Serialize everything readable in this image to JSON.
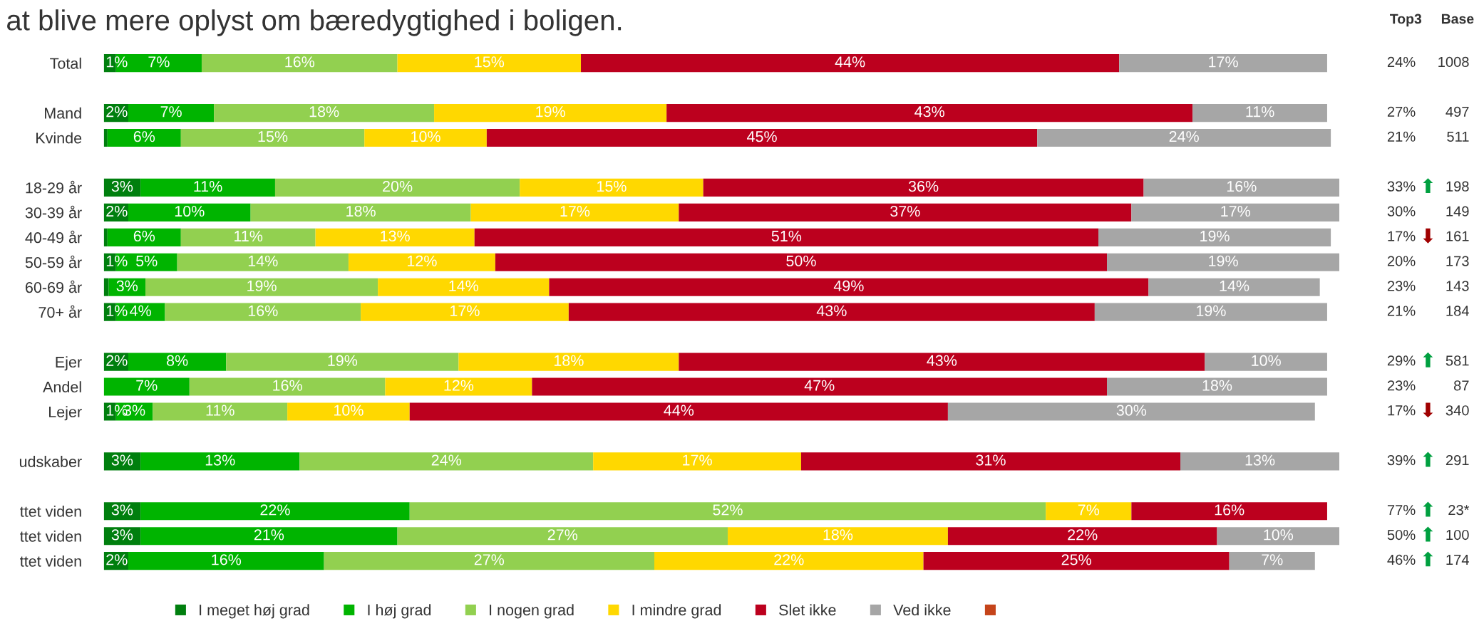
{
  "chart_data": {
    "type": "bar",
    "orientation": "horizontal",
    "stacked": true,
    "title": "at blive mere oplyst om bæredygtighed i boligen.",
    "categories": [
      "Total",
      null,
      "Mand",
      "Kvinde",
      null,
      "18-29 år",
      "30-39 år",
      "40-49 år",
      "50-59 år",
      "60-69 år",
      "70+ år",
      null,
      "Ejer",
      "Andel",
      "Lejer",
      null,
      "udskaber",
      null,
      "ttet viden",
      "ttet viden",
      "ttet viden"
    ],
    "xlim": [
      0,
      101
    ],
    "tick_labels": "y",
    "grid": false,
    "legend": "bottom",
    "series": [
      {
        "name": "I meget høj grad",
        "color": "#007f0e",
        "values": [
          1,
          null,
          2,
          0.3,
          null,
          3,
          2,
          0.3,
          1,
          0.4,
          1,
          null,
          2,
          null,
          1,
          null,
          3,
          null,
          3,
          3,
          2
        ],
        "value_labels": [
          "1%",
          null,
          "2%",
          null,
          null,
          "3%",
          "2%",
          null,
          "1%",
          null,
          "1%",
          null,
          "2%",
          null,
          "1%",
          null,
          "3%",
          null,
          "3%",
          "3%",
          "2%"
        ]
      },
      {
        "name": "I høj grad",
        "color": "#00b400",
        "values": [
          7,
          null,
          7,
          6,
          null,
          11,
          10,
          6,
          5,
          3,
          4,
          null,
          8,
          7,
          3,
          null,
          13,
          null,
          22,
          21,
          16
        ],
        "value_labels": [
          "7%",
          null,
          "7%",
          "6%",
          null,
          "11%",
          "10%",
          "6%",
          "5%",
          "3%",
          "4%",
          null,
          "8%",
          "7%",
          "3%",
          null,
          "13%",
          null,
          "22%",
          "21%",
          "16%"
        ]
      },
      {
        "name": "I nogen grad",
        "color": "#92d050",
        "values": [
          16,
          null,
          18,
          15,
          null,
          20,
          18,
          11,
          14,
          19,
          16,
          null,
          19,
          16,
          11,
          null,
          24,
          null,
          52,
          27,
          27
        ],
        "value_labels": [
          "16%",
          null,
          "18%",
          "15%",
          null,
          "20%",
          "18%",
          "11%",
          "14%",
          "19%",
          "16%",
          null,
          "19%",
          "16%",
          "11%",
          null,
          "24%",
          null,
          "52%",
          "27%",
          "27%"
        ]
      },
      {
        "name": "I mindre grad",
        "color": "#ffd800",
        "values": [
          15,
          null,
          19,
          10,
          null,
          15,
          17,
          13,
          12,
          14,
          17,
          null,
          18,
          12,
          10,
          null,
          17,
          null,
          7,
          18,
          22
        ],
        "value_labels": [
          "15%",
          null,
          "19%",
          "10%",
          null,
          "15%",
          "17%",
          "13%",
          "12%",
          "14%",
          "17%",
          null,
          "18%",
          "12%",
          "10%",
          null,
          "17%",
          null,
          "7%",
          "18%",
          "22%"
        ]
      },
      {
        "name": "Slet ikke",
        "color": "#bc001e",
        "values": [
          44,
          null,
          43,
          45,
          null,
          36,
          37,
          51,
          50,
          49,
          43,
          null,
          43,
          47,
          44,
          null,
          31,
          null,
          16,
          22,
          25
        ],
        "value_labels": [
          "44%",
          null,
          "43%",
          "45%",
          null,
          "36%",
          "37%",
          "51%",
          "50%",
          "49%",
          "43%",
          null,
          "43%",
          "47%",
          "44%",
          null,
          "31%",
          null,
          "16%",
          "22%",
          "25%"
        ]
      },
      {
        "name": "Ved ikke",
        "color": "#a6a6a6",
        "values": [
          17,
          null,
          11,
          24,
          null,
          16,
          17,
          19,
          19,
          14,
          19,
          null,
          10,
          18,
          30,
          null,
          13,
          null,
          null,
          10,
          7
        ],
        "value_labels": [
          "17%",
          null,
          "11%",
          "24%",
          null,
          "16%",
          "17%",
          "19%",
          "19%",
          "14%",
          "19%",
          null,
          "10%",
          "18%",
          "30%",
          null,
          "13%",
          null,
          null,
          "10%",
          "7%"
        ]
      },
      {
        "color": "#c5441a",
        "values": [
          null,
          null,
          null,
          null,
          null,
          null,
          null,
          null,
          null,
          null,
          null,
          null,
          null,
          null,
          null,
          null,
          null,
          null,
          null,
          null,
          null
        ]
      }
    ],
    "annotations": [
      "Top3",
      "Base",
      "24%",
      "1008",
      "27%",
      "497",
      "21%",
      "511",
      "33%",
      "⬆",
      "198",
      "30%",
      "149",
      "17%",
      "⬇",
      "161",
      "20%",
      "173",
      "23%",
      "143",
      "21%",
      "184",
      "29%",
      "⬆",
      "581",
      "23%",
      "87",
      "17%",
      "⬇",
      "340",
      "39%",
      "⬆",
      "291",
      "77%",
      "⬆",
      "23*",
      "50%",
      "⬆",
      "100",
      "46%",
      "⬆",
      "174"
    ]
  }
}
